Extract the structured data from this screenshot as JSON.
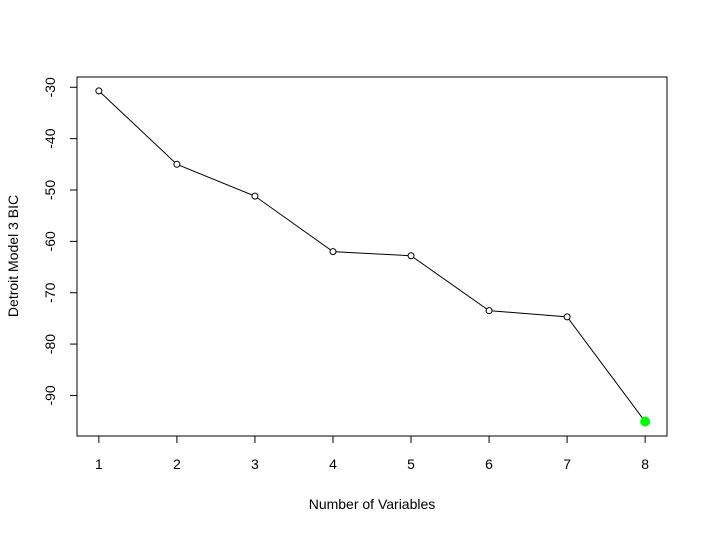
{
  "chart_data": {
    "type": "line",
    "title": "",
    "xlabel": "Number of Variables",
    "ylabel": "Detroit Model 3 BIC",
    "x": [
      1,
      2,
      3,
      4,
      5,
      6,
      7,
      8
    ],
    "series": [
      {
        "values": [
          -30.7,
          -45.0,
          -51.2,
          -62.0,
          -62.8,
          -73.5,
          -74.7,
          -95.1
        ]
      }
    ],
    "xlim": [
      0.72,
      8.28
    ],
    "ylim": [
      -97.9,
      -28.0
    ],
    "xticks": [
      1,
      2,
      3,
      4,
      5,
      6,
      7,
      8
    ],
    "yticks": [
      -90,
      -80,
      -70,
      -60,
      -50,
      -40,
      -30
    ],
    "highlight": {
      "x": 8,
      "y": -95.1,
      "color": "#00ff00"
    },
    "line_color": "#000000",
    "marker": "open-circle",
    "grid": false,
    "legend": "none"
  }
}
